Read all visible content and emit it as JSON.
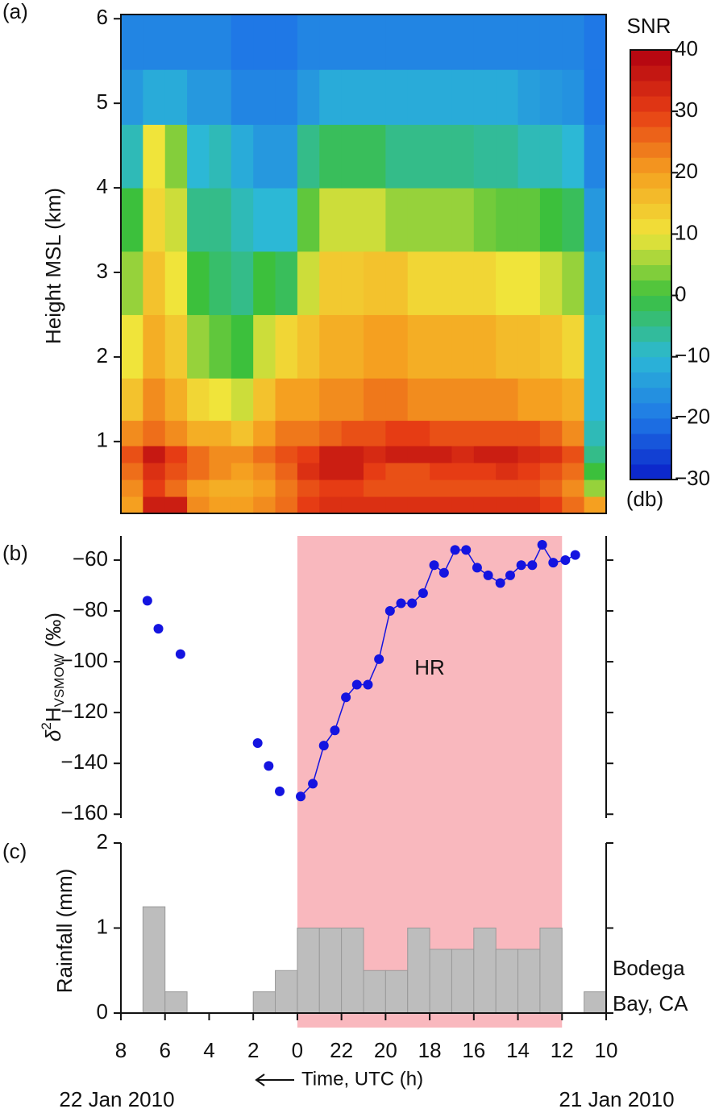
{
  "chart_data": [
    {
      "type": "heatmap",
      "panel_label": "(a)",
      "ylabel": "Height MSL (km)",
      "xlim": [
        22,
        0
      ],
      "ylim": [
        0.15,
        6.05
      ],
      "yticks": [
        1,
        2,
        3,
        4,
        5,
        6
      ],
      "x_bins": [
        22,
        21,
        20,
        19,
        18,
        17,
        16,
        15,
        14,
        13,
        12,
        11,
        10,
        9,
        8,
        7,
        6,
        5,
        4,
        3,
        2,
        1,
        0
      ],
      "y_bins": [
        0.15,
        0.35,
        0.55,
        0.75,
        0.95,
        1.25,
        1.75,
        2.5,
        3.25,
        4,
        4.75,
        5.4,
        6.05
      ],
      "values": [
        [
          20,
          35,
          35,
          22,
          20,
          20,
          22,
          25,
          30,
          32,
          32,
          32,
          32,
          32,
          32,
          32,
          32,
          32,
          32,
          30,
          25,
          20
        ],
        [
          22,
          30,
          25,
          20,
          18,
          18,
          20,
          24,
          28,
          30,
          30,
          28,
          28,
          28,
          28,
          28,
          28,
          28,
          28,
          26,
          22,
          5
        ],
        [
          25,
          32,
          28,
          25,
          22,
          20,
          22,
          26,
          32,
          35,
          35,
          30,
          28,
          28,
          30,
          30,
          30,
          32,
          30,
          28,
          25,
          0
        ],
        [
          28,
          36,
          30,
          25,
          22,
          22,
          25,
          28,
          30,
          35,
          35,
          33,
          35,
          35,
          35,
          33,
          35,
          35,
          33,
          32,
          28,
          -5
        ],
        [
          22,
          25,
          22,
          18,
          18,
          15,
          20,
          24,
          24,
          26,
          28,
          28,
          30,
          30,
          28,
          28,
          28,
          28,
          28,
          26,
          22,
          -8
        ],
        [
          15,
          22,
          18,
          12,
          10,
          8,
          15,
          20,
          20,
          22,
          22,
          24,
          24,
          22,
          22,
          22,
          22,
          22,
          20,
          20,
          18,
          -10
        ],
        [
          10,
          18,
          14,
          5,
          2,
          0,
          8,
          12,
          15,
          18,
          18,
          20,
          20,
          18,
          18,
          18,
          18,
          16,
          16,
          15,
          12,
          -10
        ],
        [
          5,
          15,
          10,
          0,
          -3,
          -5,
          0,
          -2,
          8,
          14,
          14,
          15,
          15,
          12,
          12,
          12,
          12,
          10,
          10,
          8,
          5,
          -12
        ],
        [
          0,
          12,
          8,
          -5,
          -5,
          -8,
          -10,
          -10,
          2,
          8,
          8,
          8,
          5,
          5,
          5,
          5,
          3,
          2,
          2,
          0,
          -2,
          -15
        ],
        [
          -8,
          10,
          4,
          -10,
          -8,
          -12,
          -15,
          -15,
          -5,
          -2,
          -2,
          -2,
          -5,
          -5,
          -5,
          -5,
          -6,
          -6,
          -8,
          -8,
          -10,
          -18
        ],
        [
          -15,
          -12,
          -12,
          -15,
          -15,
          -18,
          -18,
          -18,
          -15,
          -12,
          -12,
          -12,
          -12,
          -12,
          -12,
          -12,
          -12,
          -12,
          -14,
          -15,
          -16,
          -20
        ],
        [
          -18,
          -18,
          -18,
          -18,
          -18,
          -20,
          -20,
          -20,
          -18,
          -18,
          -18,
          -18,
          -18,
          -18,
          -18,
          -18,
          -18,
          -18,
          -18,
          -18,
          -18,
          -20
        ]
      ],
      "colorbar": {
        "title": "SNR",
        "unit": "(db)",
        "clim": [
          -30,
          40
        ],
        "ticks": [
          40,
          30,
          20,
          10,
          0,
          {
            "value": -10,
            "label": "−10"
          },
          {
            "value": -20,
            "label": "−20"
          },
          {
            "value": -30,
            "label": "−30"
          }
        ],
        "colormap": [
          "#0a1ec8",
          "#1f78e6",
          "#2cb8d6",
          "#3cc03c",
          "#f0e43a",
          "#f5a020",
          "#e63c14",
          "#b00010"
        ]
      }
    },
    {
      "type": "scatter",
      "panel_label": "(b)",
      "ylabel": {
        "symbol": "δ",
        "sup": "2",
        "base": "H",
        "sub": "VSMOW",
        "unit": "(‰)"
      },
      "xlim": [
        22,
        0
      ],
      "ylim": [
        -161.5,
        -50.5
      ],
      "yticks": [
        {
          "value": -60,
          "label": "−60"
        },
        {
          "value": -80,
          "label": "−80"
        },
        {
          "value": -100,
          "label": "−100"
        },
        {
          "value": -120,
          "label": "−120"
        },
        {
          "value": -140,
          "label": "−140"
        },
        {
          "value": -160,
          "label": "−160"
        }
      ],
      "shade": {
        "x": [
          14,
          2
        ],
        "label": "HR",
        "color": "#f9b8be"
      },
      "series": [
        {
          "color": "#1414e0",
          "line": false,
          "x": [
            20.8,
            20.3,
            19.3,
            15.8,
            15.3,
            14.8
          ],
          "values": [
            -76,
            -87,
            -97,
            -132,
            -141,
            -151
          ]
        },
        {
          "color": "#1414e0",
          "line": true,
          "x": [
            13.85,
            13.3,
            12.8,
            12.3,
            11.8,
            11.3,
            10.8,
            10.3,
            9.8,
            9.3,
            8.8,
            8.3,
            7.8,
            7.35,
            6.85,
            6.35,
            5.85,
            5.35,
            4.8,
            4.35,
            3.85,
            3.35,
            2.9,
            2.4,
            1.85,
            1.4
          ],
          "values": [
            -153,
            -148,
            -133,
            -127,
            -114,
            -109,
            -109,
            -99,
            -80,
            -77,
            -77,
            -73,
            -62,
            -65,
            -56,
            -56,
            -63,
            -66,
            -69,
            -66,
            -62,
            -62,
            -54,
            -61,
            -60,
            -58
          ]
        }
      ]
    },
    {
      "type": "histogram",
      "panel_label": "(c)",
      "ylabel": "Rainfall (mm)",
      "xlim": [
        22,
        0
      ],
      "ylim": [
        0,
        2
      ],
      "yticks": [
        0,
        1,
        2
      ],
      "color": "#bdbdbd",
      "bins": [
        22,
        21,
        20,
        19,
        18,
        17,
        16,
        15,
        14,
        13,
        12,
        11,
        10,
        9,
        8,
        7,
        6,
        5,
        4,
        3,
        2,
        1,
        0
      ],
      "values": [
        0,
        1.25,
        0.25,
        0,
        0,
        0,
        0.25,
        0.5,
        1,
        1,
        1,
        0.5,
        0.5,
        1,
        0.75,
        0.75,
        1,
        0.75,
        0.75,
        1,
        0,
        0.25
      ],
      "station": [
        "Bodega",
        "Bay, CA"
      ],
      "xticks": [
        {
          "value": 22,
          "label": "8"
        },
        {
          "value": 20,
          "label": "6"
        },
        {
          "value": 18,
          "label": "4"
        },
        {
          "value": 16,
          "label": "2"
        },
        {
          "value": 14,
          "label": "0"
        },
        {
          "value": 12,
          "label": "22"
        },
        {
          "value": 10,
          "label": "20"
        },
        {
          "value": 8,
          "label": "18"
        },
        {
          "value": 6,
          "label": "16"
        },
        {
          "value": 4,
          "label": "14"
        },
        {
          "value": 2,
          "label": "12"
        },
        {
          "value": 0,
          "label": "10"
        }
      ],
      "xlabel": "Time, UTC (h)",
      "date_labels": [
        "22 Jan 2010",
        "21 Jan 2010"
      ]
    }
  ]
}
